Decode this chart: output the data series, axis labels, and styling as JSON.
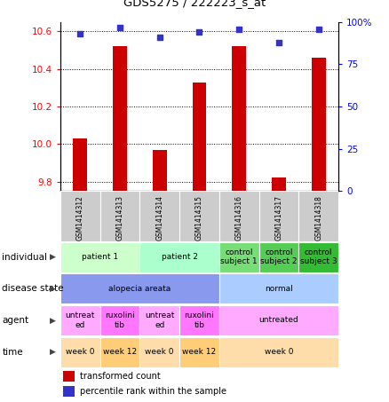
{
  "title": "GDS5275 / 222223_s_at",
  "samples": [
    "GSM1414312",
    "GSM1414313",
    "GSM1414314",
    "GSM1414315",
    "GSM1414316",
    "GSM1414317",
    "GSM1414318"
  ],
  "transformed_counts": [
    10.03,
    10.52,
    9.97,
    10.33,
    10.52,
    9.82,
    10.46
  ],
  "percentile_ranks": [
    93,
    97,
    91,
    94,
    96,
    88,
    96
  ],
  "ylim_left": [
    9.75,
    10.65
  ],
  "ylim_right": [
    0,
    100
  ],
  "yticks_left": [
    9.8,
    10.0,
    10.2,
    10.4,
    10.6
  ],
  "yticks_right": [
    0,
    25,
    50,
    75,
    100
  ],
  "ytick_labels_right": [
    "0",
    "25",
    "50",
    "75",
    "100%"
  ],
  "bar_color": "#cc0000",
  "dot_color": "#3333cc",
  "annotation_rows": [
    {
      "label": "individual",
      "cells": [
        {
          "text": "patient 1",
          "span": [
            0,
            1
          ],
          "color": "#ccffcc"
        },
        {
          "text": "patient 2",
          "span": [
            2,
            3
          ],
          "color": "#aaffcc"
        },
        {
          "text": "control\nsubject 1",
          "span": [
            4,
            4
          ],
          "color": "#77dd77"
        },
        {
          "text": "control\nsubject 2",
          "span": [
            5,
            5
          ],
          "color": "#55cc55"
        },
        {
          "text": "control\nsubject 3",
          "span": [
            6,
            6
          ],
          "color": "#33bb33"
        }
      ]
    },
    {
      "label": "disease state",
      "cells": [
        {
          "text": "alopecia areata",
          "span": [
            0,
            3
          ],
          "color": "#8899ee"
        },
        {
          "text": "normal",
          "span": [
            4,
            6
          ],
          "color": "#aaccff"
        }
      ]
    },
    {
      "label": "agent",
      "cells": [
        {
          "text": "untreat\ned",
          "span": [
            0,
            0
          ],
          "color": "#ffaaff"
        },
        {
          "text": "ruxolini\ntib",
          "span": [
            1,
            1
          ],
          "color": "#ff77ff"
        },
        {
          "text": "untreat\ned",
          "span": [
            2,
            2
          ],
          "color": "#ffaaff"
        },
        {
          "text": "ruxolini\ntib",
          "span": [
            3,
            3
          ],
          "color": "#ff77ff"
        },
        {
          "text": "untreated",
          "span": [
            4,
            6
          ],
          "color": "#ffaaff"
        }
      ]
    },
    {
      "label": "time",
      "cells": [
        {
          "text": "week 0",
          "span": [
            0,
            0
          ],
          "color": "#ffddaa"
        },
        {
          "text": "week 12",
          "span": [
            1,
            1
          ],
          "color": "#ffcc77"
        },
        {
          "text": "week 0",
          "span": [
            2,
            2
          ],
          "color": "#ffddaa"
        },
        {
          "text": "week 12",
          "span": [
            3,
            3
          ],
          "color": "#ffcc77"
        },
        {
          "text": "week 0",
          "span": [
            4,
            6
          ],
          "color": "#ffddaa"
        }
      ]
    }
  ]
}
